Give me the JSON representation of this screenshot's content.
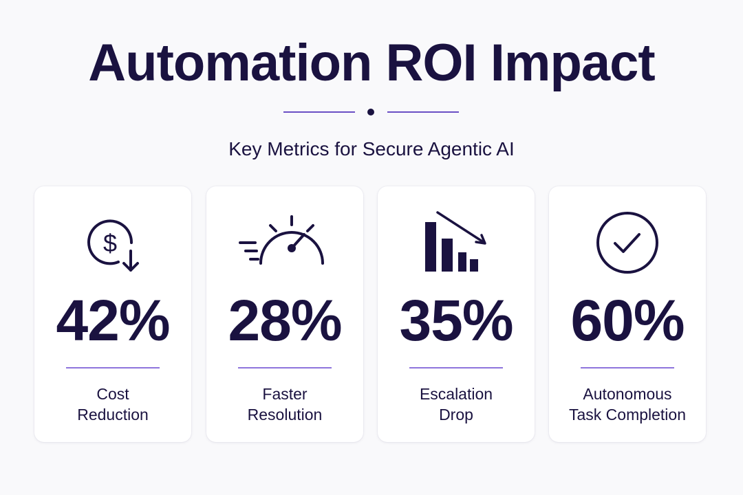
{
  "header": {
    "title": "Automation ROI Impact",
    "subtitle": "Key Metrics for Secure Agentic AI"
  },
  "colors": {
    "text": "#1a1240",
    "accent": "#6a4fc4",
    "card_background": "#ffffff",
    "page_background": "#f9f9fb"
  },
  "cards": [
    {
      "icon": "dollar-down-arrow-icon",
      "value": "42%",
      "label_line1": "Cost",
      "label_line2": "Reduction"
    },
    {
      "icon": "speedometer-icon",
      "value": "28%",
      "label_line1": "Faster",
      "label_line2": "Resolution"
    },
    {
      "icon": "declining-bar-chart-icon",
      "value": "35%",
      "label_line1": "Escalation",
      "label_line2": "Drop"
    },
    {
      "icon": "checkmark-circle-icon",
      "value": "60%",
      "label_line1": "Autonomous",
      "label_line2": "Task Completion"
    }
  ]
}
